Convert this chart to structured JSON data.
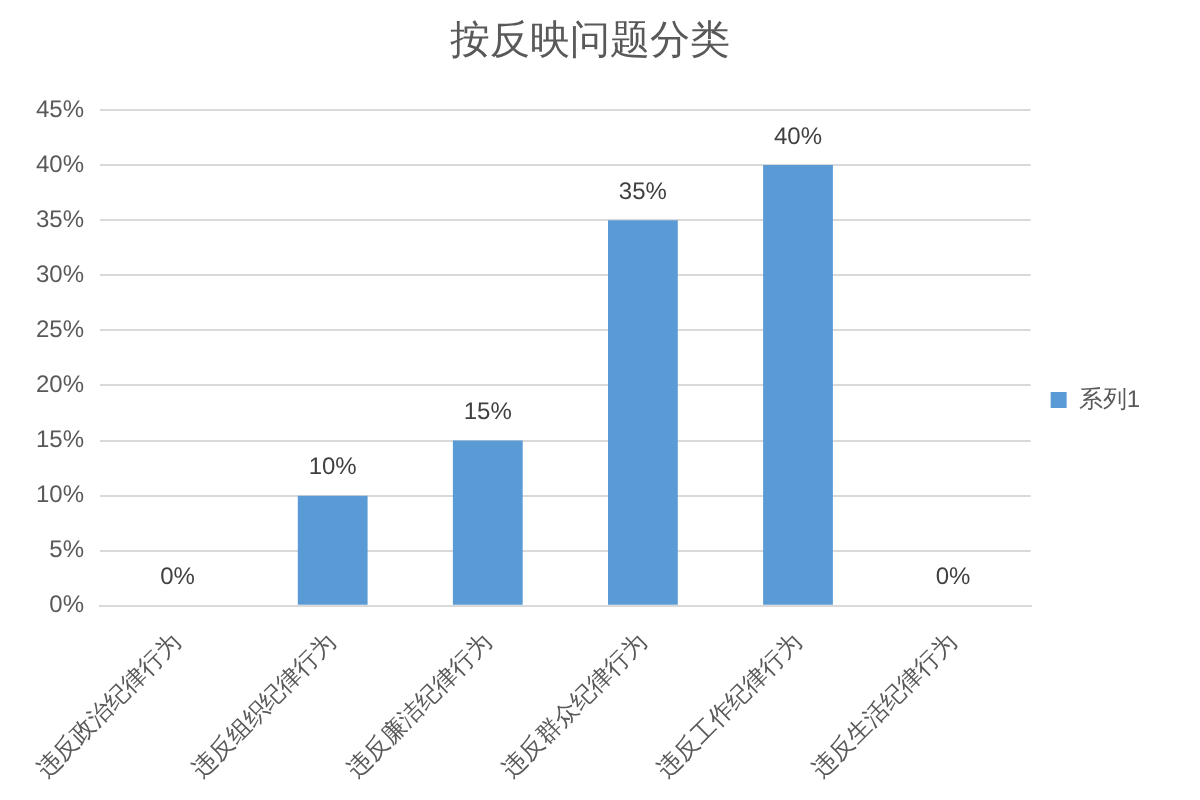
{
  "chart_data": {
    "type": "bar",
    "title": "按反映问题分类",
    "categories": [
      "违反政治纪律行为",
      "违反组织纪律行为",
      "违反廉洁纪律行为",
      "违反群众纪律行为",
      "违反工作纪律行为",
      "违反生活纪律行为"
    ],
    "series": [
      {
        "name": "系列1",
        "color": "#5b9bd5",
        "values": [
          0,
          10,
          15,
          35,
          40,
          0
        ],
        "value_labels": [
          "0%",
          "10%",
          "15%",
          "35%",
          "40%",
          "0%"
        ]
      }
    ],
    "ylim": [
      0,
      45
    ],
    "yticks": [
      {
        "value": 0,
        "label": "0%"
      },
      {
        "value": 5,
        "label": "5%"
      },
      {
        "value": 10,
        "label": "10%"
      },
      {
        "value": 15,
        "label": "15%"
      },
      {
        "value": 20,
        "label": "20%"
      },
      {
        "value": 25,
        "label": "25%"
      },
      {
        "value": 30,
        "label": "30%"
      },
      {
        "value": 35,
        "label": "35%"
      },
      {
        "value": 40,
        "label": "40%"
      },
      {
        "value": 45,
        "label": "45%"
      }
    ],
    "grid": "y",
    "legend": "right"
  }
}
